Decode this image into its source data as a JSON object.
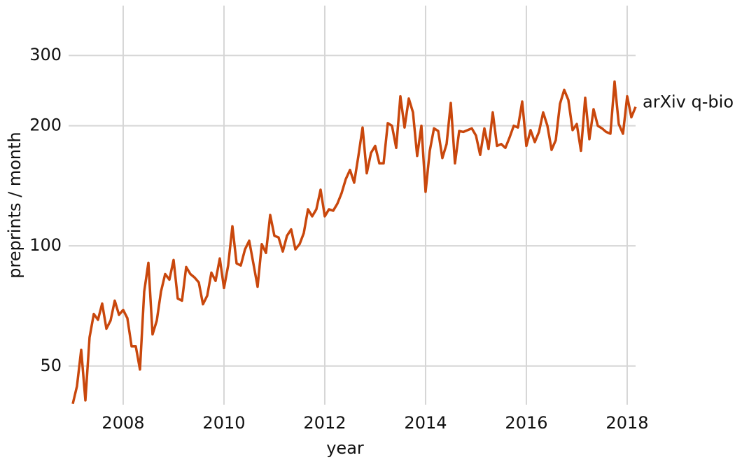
{
  "chart_data": {
    "type": "line",
    "x_label": "year",
    "y_label": "preprints / month",
    "x": [
      2007,
      2007.083,
      2007.167,
      2007.25,
      2007.333,
      2007.417,
      2007.5,
      2007.583,
      2007.667,
      2007.75,
      2007.833,
      2007.917,
      2008,
      2008.083,
      2008.167,
      2008.25,
      2008.333,
      2008.417,
      2008.5,
      2008.583,
      2008.667,
      2008.75,
      2008.833,
      2008.917,
      2009,
      2009.083,
      2009.167,
      2009.25,
      2009.333,
      2009.417,
      2009.5,
      2009.583,
      2009.667,
      2009.75,
      2009.833,
      2009.917,
      2010,
      2010.083,
      2010.167,
      2010.25,
      2010.333,
      2010.417,
      2010.5,
      2010.583,
      2010.667,
      2010.75,
      2010.833,
      2010.917,
      2011,
      2011.083,
      2011.167,
      2011.25,
      2011.333,
      2011.417,
      2011.5,
      2011.583,
      2011.667,
      2011.75,
      2011.833,
      2011.917,
      2012,
      2012.083,
      2012.167,
      2012.25,
      2012.333,
      2012.417,
      2012.5,
      2012.583,
      2012.667,
      2012.75,
      2012.833,
      2012.917,
      2013,
      2013.083,
      2013.167,
      2013.25,
      2013.333,
      2013.417,
      2013.5,
      2013.583,
      2013.667,
      2013.75,
      2013.833,
      2013.917,
      2014,
      2014.083,
      2014.167,
      2014.25,
      2014.333,
      2014.417,
      2014.5,
      2014.583,
      2014.667,
      2014.75,
      2014.833,
      2014.917,
      2015,
      2015.083,
      2015.167,
      2015.25,
      2015.333,
      2015.417,
      2015.5,
      2015.583,
      2015.667,
      2015.75,
      2015.833,
      2015.917,
      2016,
      2016.083,
      2016.167,
      2016.25,
      2016.333,
      2016.417,
      2016.5,
      2016.583,
      2016.667,
      2016.75,
      2016.833,
      2016.917,
      2017,
      2017.083,
      2017.167,
      2017.25,
      2017.333,
      2017.417,
      2017.5,
      2017.583,
      2017.667,
      2017.75,
      2017.833,
      2017.917,
      2018,
      2018.083,
      2018.167
    ],
    "series": [
      {
        "name": "arXiv q-bio",
        "color": "#c9470c",
        "values": [
          40.2,
          44.5,
          54.9,
          41,
          59,
          67.5,
          65.3,
          71.7,
          62,
          65,
          72.9,
          67.2,
          69.1,
          65.9,
          56,
          56,
          49,
          76.8,
          90.7,
          60,
          65,
          76.8,
          85,
          82.3,
          92.2,
          73.8,
          72.9,
          88.5,
          85,
          83.3,
          81,
          71.4,
          75,
          85.7,
          81.7,
          93,
          78.4,
          89.3,
          112,
          90.4,
          89.3,
          98,
          103,
          90.4,
          79,
          101,
          96,
          119.5,
          106,
          105,
          96.8,
          106,
          110,
          98,
          101,
          107.6,
          123.5,
          118.6,
          123.5,
          138.3,
          118.6,
          123.5,
          122.5,
          127.6,
          135.5,
          147,
          155,
          144,
          168,
          198,
          152,
          171,
          178,
          161,
          161,
          203,
          200,
          176,
          237,
          198,
          234,
          216,
          168,
          200,
          136.6,
          173,
          197,
          194,
          166,
          180,
          228,
          161,
          194,
          193,
          195,
          197,
          189,
          169,
          197,
          175,
          216,
          178,
          180,
          176,
          187,
          200,
          198,
          230,
          178,
          195,
          182,
          193,
          216,
          200,
          174,
          184,
          227,
          246,
          232,
          195,
          202,
          173,
          235,
          185,
          220,
          200,
          197,
          193,
          191,
          258,
          202,
          191,
          237,
          210,
          223
        ]
      }
    ],
    "xlim": [
      2006.917,
      2018.167
    ],
    "xticks": [
      2008,
      2010,
      2012,
      2014,
      2016,
      2018
    ],
    "ylim": [
      40,
      400
    ],
    "yticks": [
      50,
      100,
      200,
      300
    ],
    "log_y": true,
    "grid": true
  }
}
